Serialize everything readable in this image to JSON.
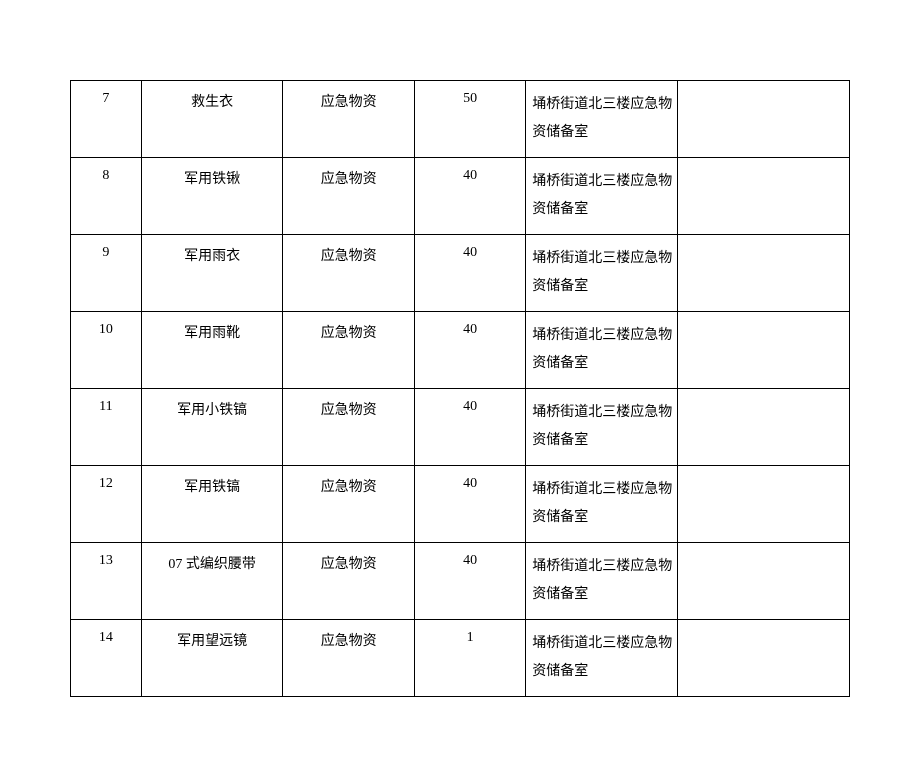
{
  "table": {
    "columns": [
      {
        "key": "num",
        "class": "col-num"
      },
      {
        "key": "name",
        "class": "col-name"
      },
      {
        "key": "type",
        "class": "col-type"
      },
      {
        "key": "qty",
        "class": "col-qty"
      },
      {
        "key": "loc",
        "class": "col-loc"
      },
      {
        "key": "extra",
        "class": "col-extra"
      }
    ],
    "rows": [
      {
        "num": "7",
        "name": "救生衣",
        "type": "应急物资",
        "qty": "50",
        "loc": "埇桥街道北三楼应急物资储备室",
        "extra": ""
      },
      {
        "num": "8",
        "name": "军用铁锹",
        "type": "应急物资",
        "qty": "40",
        "loc": "埇桥街道北三楼应急物资储备室",
        "extra": ""
      },
      {
        "num": "9",
        "name": "军用雨衣",
        "type": "应急物资",
        "qty": "40",
        "loc": "埇桥街道北三楼应急物资储备室",
        "extra": ""
      },
      {
        "num": "10",
        "name": "军用雨靴",
        "type": "应急物资",
        "qty": "40",
        "loc": "埇桥街道北三楼应急物资储备室",
        "extra": ""
      },
      {
        "num": "11",
        "name": "军用小铁镐",
        "type": "应急物资",
        "qty": "40",
        "loc": "埇桥街道北三楼应急物资储备室",
        "extra": ""
      },
      {
        "num": "12",
        "name": "军用铁镐",
        "type": "应急物资",
        "qty": "40",
        "loc": "埇桥街道北三楼应急物资储备室",
        "extra": ""
      },
      {
        "num": "13",
        "name": "07 式编织腰带",
        "type": "应急物资",
        "qty": "40",
        "loc": "埇桥街道北三楼应急物资储备室",
        "extra": ""
      },
      {
        "num": "14",
        "name": "军用望远镜",
        "type": "应急物资",
        "qty": "1",
        "loc": "埇桥街道北三楼应急物资储备室",
        "extra": ""
      }
    ],
    "border_color": "#000000",
    "background_color": "#ffffff",
    "font_size": 14,
    "font_family": "SimSun"
  }
}
